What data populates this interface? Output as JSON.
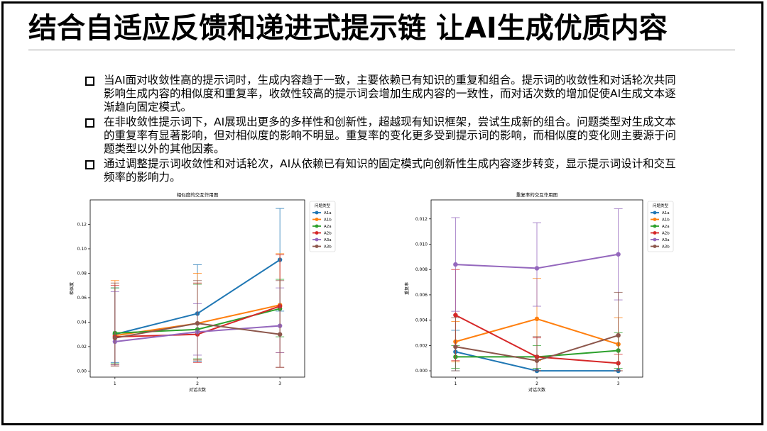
{
  "slide": {
    "title": "结合自适应反馈和递进式提示链 让AI生成优质内容",
    "bullets": [
      "当AI面对收敛性高的提示词时，生成内容趋于一致，主要依赖已有知识的重复和组合。提示词的收敛性和对话轮次共同影响生成内容的相似度和重复率，收敛性较高的提示词会增加生成内容的一致性，而对话次数的增加促使AI生成文本逐渐趋向固定模式。",
      "在非收敛性提示词下，AI展现出更多的多样性和创新性，超越现有知识框架，尝试生成新的组合。问题类型对生成文本的重复率有显著影响，但对相似度的影响不明显。重复率的变化更多受到提示词的影响，而相似度的变化则主要源于问题类型以外的其他因素。",
      "通过调整提示词收敛性和对话轮次，AI从依赖已有知识的固定模式向创新性生成内容逐步转变，显示提示词设计和交互频率的影响力。"
    ]
  },
  "colors": {
    "A1a": "#1f77b4",
    "A1b": "#ff7f0e",
    "A2a": "#2ca02c",
    "A2b": "#d62728",
    "A3a": "#9467bd",
    "A3b": "#8c564b"
  },
  "chart_data": [
    {
      "type": "line",
      "title": "相似度的交互作用图",
      "xlabel": "对话次数",
      "ylabel": "相似度",
      "x": [
        1,
        2,
        3
      ],
      "ylim": [
        -0.005,
        0.14
      ],
      "yticks": [
        0.0,
        0.02,
        0.04,
        0.06,
        0.08,
        0.1,
        0.12
      ],
      "legend_title": "问题类型",
      "legend_position": "outside-right",
      "grid": false,
      "series": [
        {
          "name": "A1a",
          "values": [
            0.03,
            0.047,
            0.091
          ],
          "err_low": [
            0.007,
            0.008,
            0.049
          ],
          "err_high": [
            0.068,
            0.087,
            0.133
          ]
        },
        {
          "name": "A1b",
          "values": [
            0.029,
            0.039,
            0.054
          ],
          "err_low": [
            0.005,
            0.009,
            0.015
          ],
          "err_high": [
            0.074,
            0.08,
            0.096
          ]
        },
        {
          "name": "A2a",
          "values": [
            0.031,
            0.034,
            0.051
          ],
          "err_low": [
            0.006,
            0.01,
            0.028
          ],
          "err_high": [
            0.068,
            0.071,
            0.075
          ]
        },
        {
          "name": "A2b",
          "values": [
            0.028,
            0.03,
            0.053
          ],
          "err_low": [
            0.005,
            0.007,
            0.003
          ],
          "err_high": [
            0.07,
            0.072,
            0.095
          ]
        },
        {
          "name": "A3a",
          "values": [
            0.024,
            0.032,
            0.037
          ],
          "err_low": [
            0.005,
            0.013,
            0.015
          ],
          "err_high": [
            0.065,
            0.055,
            0.068
          ]
        },
        {
          "name": "A3b",
          "values": [
            0.027,
            0.039,
            0.03
          ],
          "err_low": [
            0.004,
            0.009,
            0.003
          ],
          "err_high": [
            0.072,
            0.074,
            0.074
          ]
        }
      ]
    },
    {
      "type": "line",
      "title": "重复率的交互作用图",
      "xlabel": "对话次数",
      "ylabel": "重复率",
      "x": [
        1,
        2,
        3
      ],
      "ylim": [
        -0.0005,
        0.0135
      ],
      "yticks": [
        0.0,
        0.002,
        0.004,
        0.006,
        0.008,
        0.01,
        0.012
      ],
      "legend_title": "问题类型",
      "legend_position": "outside-right",
      "grid": false,
      "series": [
        {
          "name": "A1a",
          "values": [
            0.0015,
            0.0,
            0.0
          ],
          "err_low": [
            0.0,
            0.0,
            0.0
          ],
          "err_high": [
            0.0032,
            0.0,
            0.0
          ]
        },
        {
          "name": "A1b",
          "values": [
            0.0023,
            0.0041,
            0.0021
          ],
          "err_low": [
            0.0007,
            0.0008,
            0.0
          ],
          "err_high": [
            0.0039,
            0.0073,
            0.0042
          ]
        },
        {
          "name": "A2a",
          "values": [
            0.0011,
            0.0011,
            0.0016
          ],
          "err_low": [
            0.0002,
            0.0002,
            0.0002
          ],
          "err_high": [
            0.002,
            0.002,
            0.003
          ]
        },
        {
          "name": "A2b",
          "values": [
            0.0044,
            0.0011,
            0.0006
          ],
          "err_low": [
            0.0008,
            0.0,
            0.0
          ],
          "err_high": [
            0.008,
            0.0026,
            0.0013
          ]
        },
        {
          "name": "A3a",
          "values": [
            0.0084,
            0.0081,
            0.0092
          ],
          "err_low": [
            0.0047,
            0.0051,
            0.0056
          ],
          "err_high": [
            0.0121,
            0.0117,
            0.0128
          ]
        },
        {
          "name": "A3b",
          "values": [
            0.0019,
            0.0008,
            0.0028
          ],
          "err_low": [
            0.0,
            0.0,
            0.0
          ],
          "err_high": [
            0.0042,
            0.0027,
            0.0062
          ]
        }
      ]
    }
  ]
}
